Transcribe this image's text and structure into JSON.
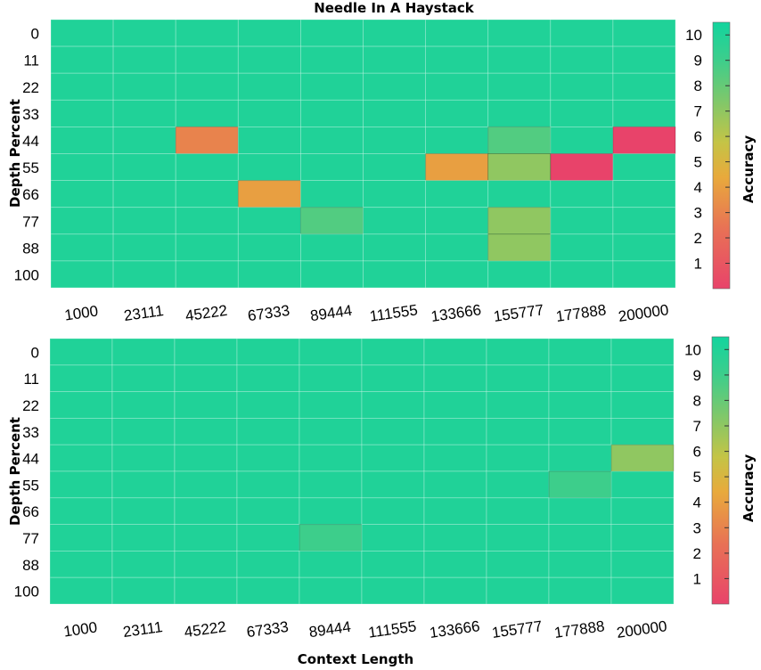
{
  "title": "Needle In A Haystack",
  "xlabel": "Context Length",
  "chart_data": [
    {
      "type": "heatmap",
      "ylabel": "Depth Percent",
      "colorbar_label": "Accuracy",
      "x_categories": [
        "1000",
        "23111",
        "45222",
        "67333",
        "89444",
        "111555",
        "133666",
        "155777",
        "177888",
        "200000"
      ],
      "y_categories": [
        "0",
        "11",
        "22",
        "33",
        "44",
        "55",
        "66",
        "77",
        "88",
        "100"
      ],
      "colorbar_ticks": [
        "1",
        "2",
        "3",
        "4",
        "5",
        "6",
        "7",
        "8",
        "9",
        "10"
      ],
      "vmin": 0,
      "vmax": 10.5,
      "values": [
        [
          10,
          10,
          10,
          10,
          10,
          10,
          10,
          10,
          10,
          10
        ],
        [
          10,
          10,
          10,
          10,
          10,
          10,
          10,
          10,
          10,
          10
        ],
        [
          10,
          10,
          10,
          10,
          10,
          10,
          10,
          10,
          10,
          10
        ],
        [
          10,
          10,
          10,
          10,
          10,
          10,
          10,
          10,
          10,
          10
        ],
        [
          10,
          10,
          3,
          10,
          10,
          10,
          10,
          8.5,
          10,
          0
        ],
        [
          10,
          10,
          10,
          10,
          10,
          10,
          4,
          7,
          0,
          10
        ],
        [
          10,
          10,
          10,
          4,
          10,
          10,
          10,
          10,
          10,
          10
        ],
        [
          10,
          10,
          10,
          10,
          8.5,
          10,
          10,
          7,
          10,
          10
        ],
        [
          10,
          10,
          10,
          10,
          10,
          10,
          10,
          7,
          10,
          10
        ],
        [
          10,
          10,
          10,
          10,
          10,
          10,
          10,
          10,
          10,
          10
        ]
      ]
    },
    {
      "type": "heatmap",
      "ylabel": "Depth Percent",
      "colorbar_label": "Accuracy",
      "x_categories": [
        "1000",
        "23111",
        "45222",
        "67333",
        "89444",
        "111555",
        "133666",
        "155777",
        "177888",
        "200000"
      ],
      "y_categories": [
        "0",
        "11",
        "22",
        "33",
        "44",
        "55",
        "66",
        "77",
        "88",
        "100"
      ],
      "colorbar_ticks": [
        "1",
        "2",
        "3",
        "4",
        "5",
        "6",
        "7",
        "8",
        "9",
        "10"
      ],
      "vmin": 0,
      "vmax": 10.5,
      "values": [
        [
          10,
          10,
          10,
          10,
          10,
          10,
          10,
          10,
          10,
          10
        ],
        [
          10,
          10,
          10,
          10,
          10,
          10,
          10,
          10,
          10,
          10
        ],
        [
          10,
          10,
          10,
          10,
          10,
          10,
          10,
          10,
          10,
          10
        ],
        [
          10,
          10,
          10,
          10,
          10,
          10,
          10,
          10,
          10,
          10
        ],
        [
          10,
          10,
          10,
          10,
          10,
          10,
          10,
          10,
          10,
          7
        ],
        [
          10,
          10,
          10,
          10,
          10,
          10,
          10,
          10,
          9,
          10
        ],
        [
          10,
          10,
          10,
          10,
          10,
          10,
          10,
          10,
          10,
          10
        ],
        [
          10,
          10,
          10,
          10,
          9,
          10,
          10,
          10,
          10,
          10
        ],
        [
          10,
          10,
          10,
          10,
          10,
          10,
          10,
          10,
          10,
          10
        ],
        [
          10,
          10,
          10,
          10,
          10,
          10,
          10,
          10,
          10,
          10
        ]
      ]
    }
  ]
}
